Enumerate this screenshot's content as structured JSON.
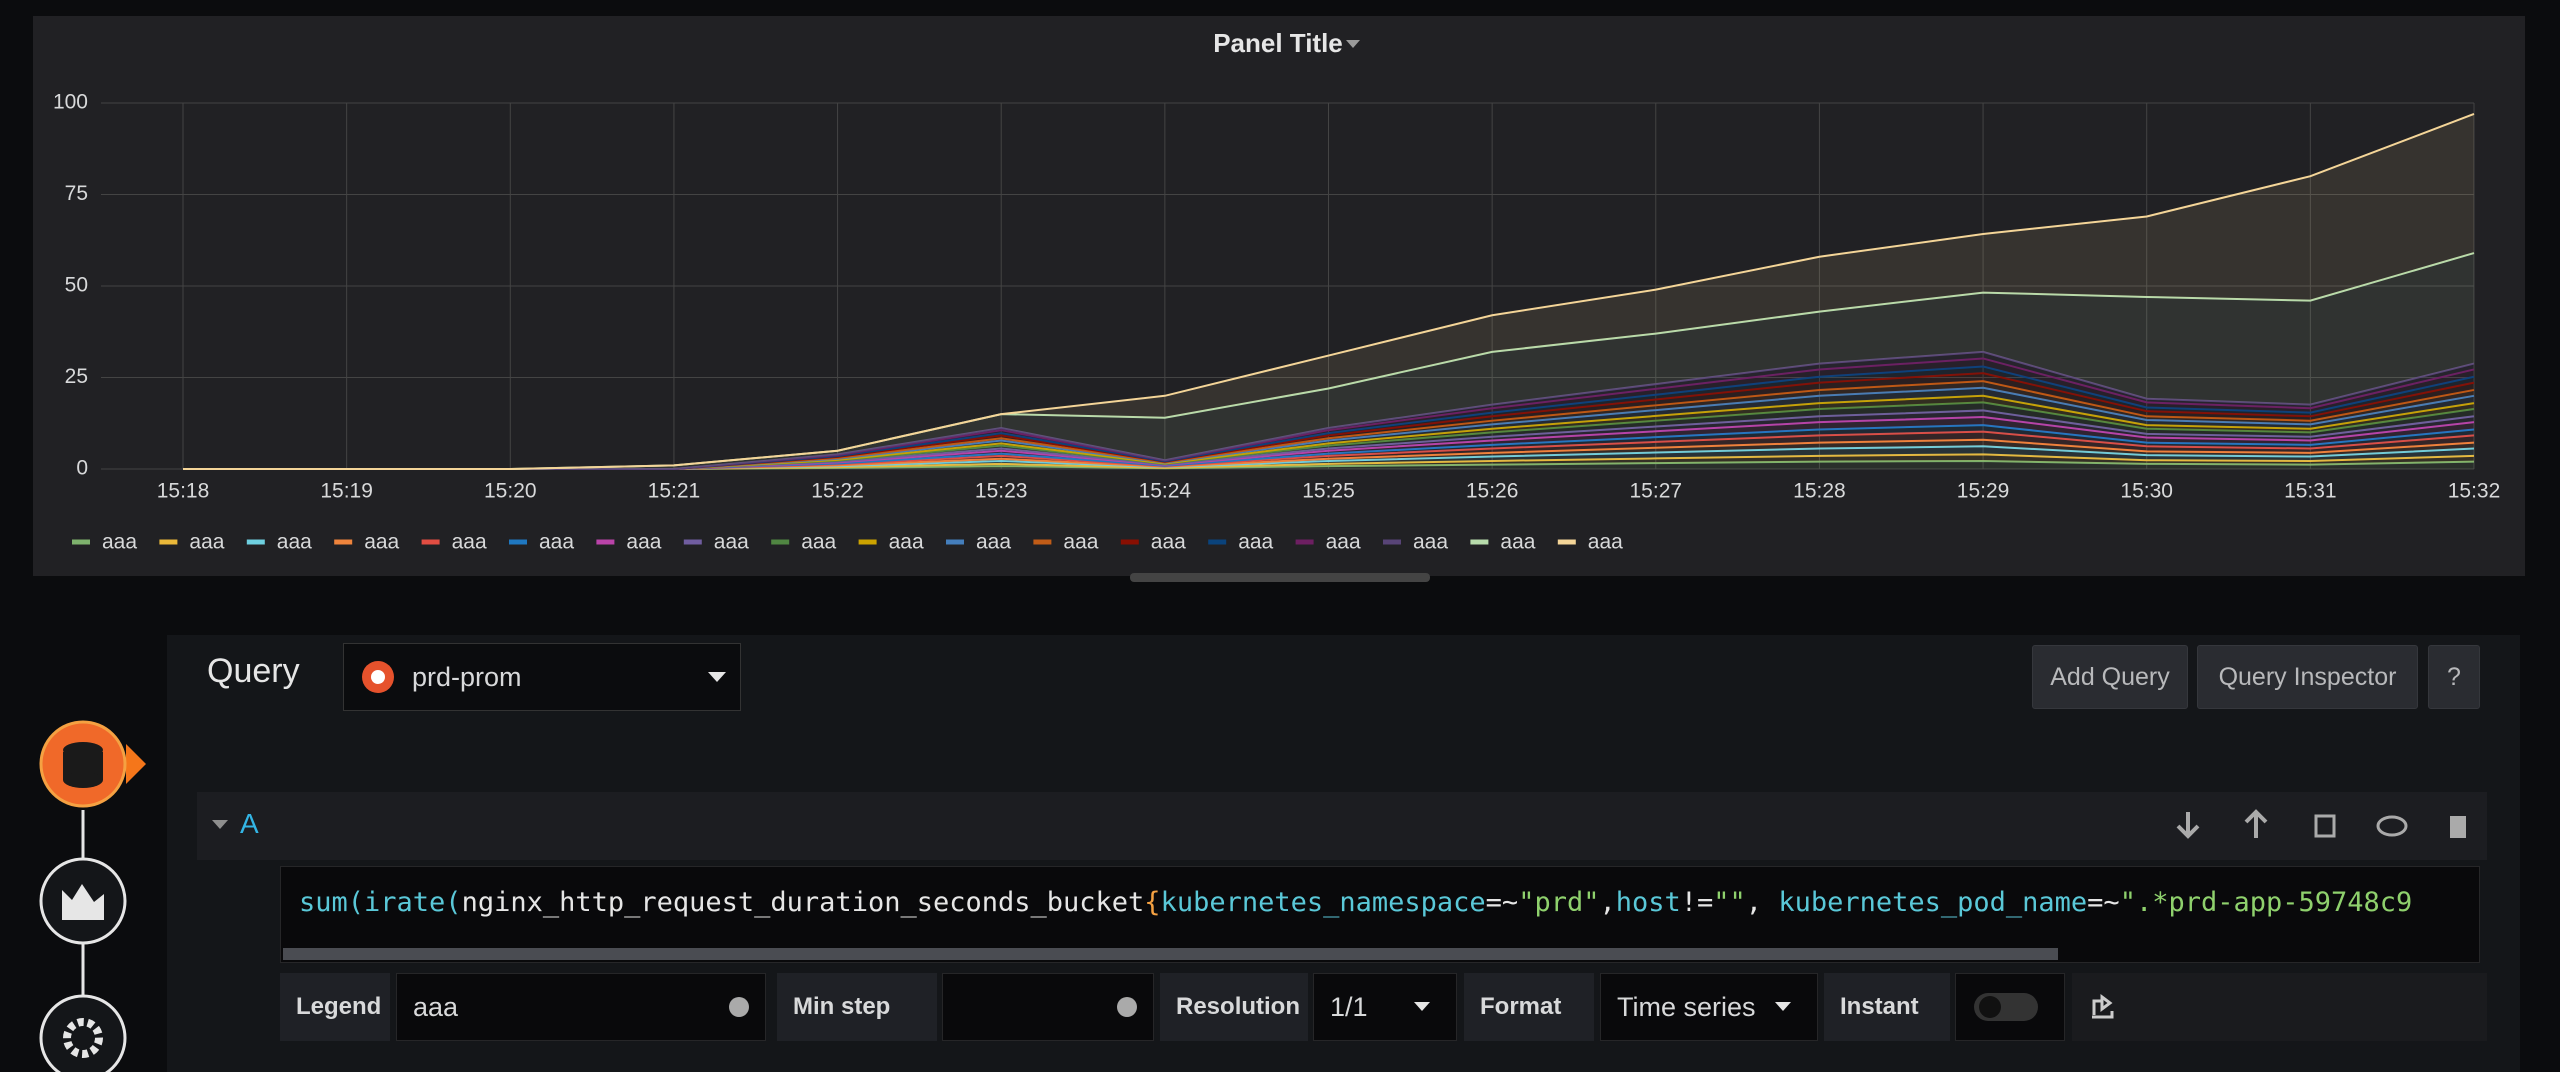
{
  "chart_data": {
    "type": "area",
    "title": "Panel Title",
    "stacked": true,
    "grid": true,
    "categories": [
      "15:18",
      "15:19",
      "15:20",
      "15:21",
      "15:22",
      "15:23",
      "15:24",
      "15:25",
      "15:26",
      "15:27",
      "15:28",
      "15:29",
      "15:30",
      "15:31",
      "15:32"
    ],
    "ylim": [
      0,
      100
    ],
    "yticks": [
      0,
      25,
      50,
      75,
      100
    ],
    "series": [
      {
        "name": "aaa",
        "color": "#7EB26D",
        "values": [
          0,
          0,
          0,
          0,
          0.3,
          0.8,
          0.2,
          0.8,
          1.2,
          1.6,
          2,
          2.2,
          1.4,
          1.2,
          2
        ]
      },
      {
        "name": "aaa",
        "color": "#EAB839",
        "values": [
          0,
          0,
          0,
          0,
          0.2,
          0.6,
          0.1,
          0.6,
          1,
          1.3,
          1.6,
          1.8,
          1,
          1,
          1.6
        ]
      },
      {
        "name": "aaa",
        "color": "#6ED0E0",
        "values": [
          0,
          0,
          0,
          0,
          0.3,
          0.8,
          0.2,
          0.8,
          1.2,
          1.6,
          2,
          2.2,
          1.4,
          1.2,
          2
        ]
      },
      {
        "name": "aaa",
        "color": "#EF843C",
        "values": [
          0,
          0,
          0,
          0,
          0.2,
          0.6,
          0.1,
          0.6,
          1,
          1.3,
          1.6,
          1.8,
          1,
          1,
          1.6
        ]
      },
      {
        "name": "aaa",
        "color": "#E24D42",
        "values": [
          0,
          0,
          0,
          0,
          0.3,
          0.8,
          0.2,
          0.8,
          1.2,
          1.6,
          2,
          2.2,
          1.4,
          1.2,
          2
        ]
      },
      {
        "name": "aaa",
        "color": "#1F78C1",
        "values": [
          0,
          0,
          0,
          0,
          0.2,
          0.6,
          0.1,
          0.6,
          1,
          1.3,
          1.6,
          1.8,
          1,
          1,
          1.6
        ]
      },
      {
        "name": "aaa",
        "color": "#BA43A9",
        "values": [
          0,
          0,
          0,
          0,
          0.3,
          0.8,
          0.2,
          0.8,
          1.2,
          1.6,
          2,
          2.2,
          1.4,
          1.2,
          2
        ]
      },
      {
        "name": "aaa",
        "color": "#705DA0",
        "values": [
          0,
          0,
          0,
          0,
          0.2,
          0.6,
          0.1,
          0.6,
          1,
          1.3,
          1.6,
          1.8,
          1,
          1,
          1.6
        ]
      },
      {
        "name": "aaa",
        "color": "#508642",
        "values": [
          0,
          0,
          0,
          0,
          0.3,
          0.8,
          0.2,
          0.8,
          1.2,
          1.6,
          2,
          2.2,
          1.4,
          1.2,
          2
        ]
      },
      {
        "name": "aaa",
        "color": "#CCA300",
        "values": [
          0,
          0,
          0,
          0,
          0.2,
          0.6,
          0.1,
          0.6,
          1,
          1.3,
          1.6,
          1.8,
          1,
          1,
          1.6
        ]
      },
      {
        "name": "aaa",
        "color": "#447EBC",
        "values": [
          0,
          0,
          0,
          0,
          0.3,
          0.8,
          0.2,
          0.8,
          1.2,
          1.6,
          2,
          2.2,
          1.4,
          1.2,
          2
        ]
      },
      {
        "name": "aaa",
        "color": "#C15C17",
        "values": [
          0,
          0,
          0,
          0,
          0.2,
          0.6,
          0.1,
          0.6,
          1,
          1.3,
          1.6,
          1.8,
          1,
          1,
          1.6
        ]
      },
      {
        "name": "aaa",
        "color": "#890F02",
        "values": [
          0,
          0,
          0,
          0,
          0.3,
          0.8,
          0.2,
          0.8,
          1.2,
          1.6,
          2,
          2.2,
          1.4,
          1.2,
          2
        ]
      },
      {
        "name": "aaa",
        "color": "#0A437C",
        "values": [
          0,
          0,
          0,
          0,
          0.2,
          0.6,
          0.1,
          0.6,
          1,
          1.3,
          1.6,
          1.8,
          1,
          1,
          1.6
        ]
      },
      {
        "name": "aaa",
        "color": "#6D1F62",
        "values": [
          0,
          0,
          0,
          0,
          0.3,
          0.8,
          0.2,
          0.8,
          1.2,
          1.6,
          2,
          2.2,
          1.4,
          1.2,
          2
        ]
      },
      {
        "name": "aaa",
        "color": "#584477",
        "values": [
          0,
          0,
          0,
          0,
          0.2,
          0.6,
          0.1,
          0.6,
          1,
          1.3,
          1.6,
          1.8,
          1,
          1,
          1.6
        ]
      },
      {
        "name": "aaa",
        "color": "#B7DBAB",
        "values": [
          0,
          0,
          0,
          1,
          1,
          3.8,
          11.6,
          10.8,
          14.4,
          13.8,
          14.2,
          16.2,
          27.8,
          28.4,
          30.2
        ]
      },
      {
        "name": "aaa",
        "color": "#F4D598",
        "values": [
          0,
          0,
          0,
          0,
          0,
          0,
          6,
          9,
          10,
          12,
          15,
          16,
          22,
          34,
          38
        ]
      }
    ]
  },
  "query": {
    "label": "Query",
    "datasource": "prd-prom",
    "buttons": [
      "Add Query",
      "Query Inspector",
      "?"
    ],
    "ref_id": "A",
    "expression": [
      {
        "text": "sum(irate(",
        "color": "#5ac8d8"
      },
      {
        "text": "nginx_http_request_duration_seconds_bucket",
        "color": "#e6e6e6"
      },
      {
        "text": "{",
        "color": "#f5a142"
      },
      {
        "text": "kubernetes_namespace",
        "color": "#5ac8d8"
      },
      {
        "text": "=~",
        "color": "#e6e6e6"
      },
      {
        "text": "\"prd\"",
        "color": "#8fd16d"
      },
      {
        "text": ",",
        "color": "#e6e6e6"
      },
      {
        "text": "host",
        "color": "#5ac8d8"
      },
      {
        "text": "!=",
        "color": "#e6e6e6"
      },
      {
        "text": "\"\"",
        "color": "#8fd16d"
      },
      {
        "text": ", ",
        "color": "#e6e6e6"
      },
      {
        "text": "kubernetes_pod_name",
        "color": "#5ac8d8"
      },
      {
        "text": "=~",
        "color": "#e6e6e6"
      },
      {
        "text": "\".*prd-app-59748c9",
        "color": "#8fd16d"
      }
    ],
    "options": {
      "legend_label": "Legend",
      "legend_value": "aaa",
      "min_step_label": "Min step",
      "resolution_label": "Resolution",
      "resolution_value": "1/1",
      "format_label": "Format",
      "format_value": "Time series",
      "instant_label": "Instant"
    }
  }
}
